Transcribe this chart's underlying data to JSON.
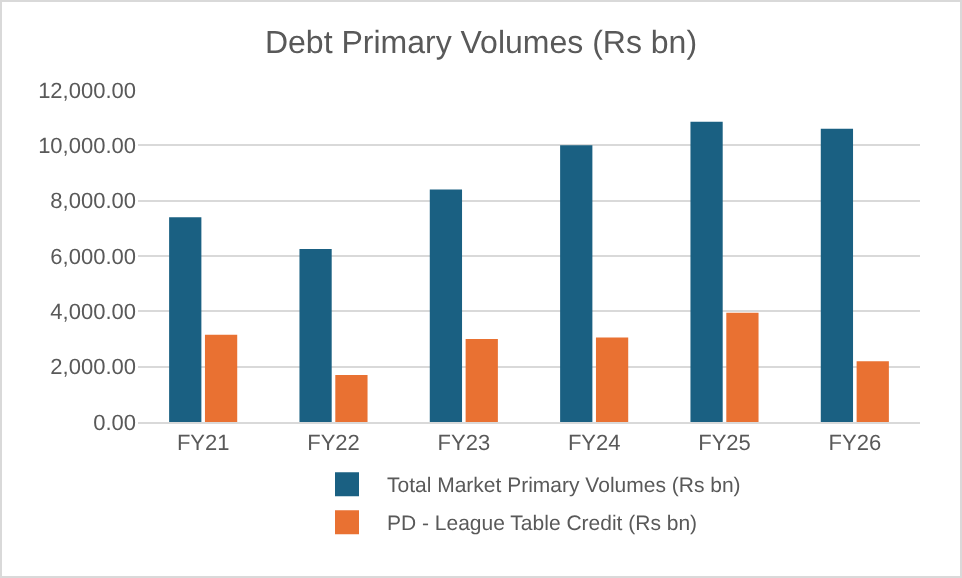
{
  "chart_data": {
    "type": "bar",
    "title": "Debt Primary Volumes (Rs bn)",
    "categories": [
      "FY21",
      "FY22",
      "FY23",
      "FY24",
      "FY25",
      "FY26"
    ],
    "series": [
      {
        "name": "Total Market Primary Volumes (Rs bn)",
        "color": "#1a6082",
        "values": [
          7400,
          6250,
          8400,
          10000,
          10850,
          10600
        ]
      },
      {
        "name": "PD - League Table Credit (Rs bn)",
        "color": "#e97132",
        "values": [
          3150,
          1700,
          3000,
          3050,
          3950,
          2200
        ]
      }
    ],
    "ylim": [
      0,
      12000
    ],
    "yticks": [
      {
        "value": 0,
        "label": "0.00"
      },
      {
        "value": 2000,
        "label": "2,000.00"
      },
      {
        "value": 4000,
        "label": "4,000.00"
      },
      {
        "value": 6000,
        "label": "6,000.00"
      },
      {
        "value": 8000,
        "label": "8,000.00"
      },
      {
        "value": 10000,
        "label": "10,000.00"
      },
      {
        "value": 12000,
        "label": "12,000.00"
      }
    ],
    "grid": "y",
    "legend": "bottom"
  }
}
